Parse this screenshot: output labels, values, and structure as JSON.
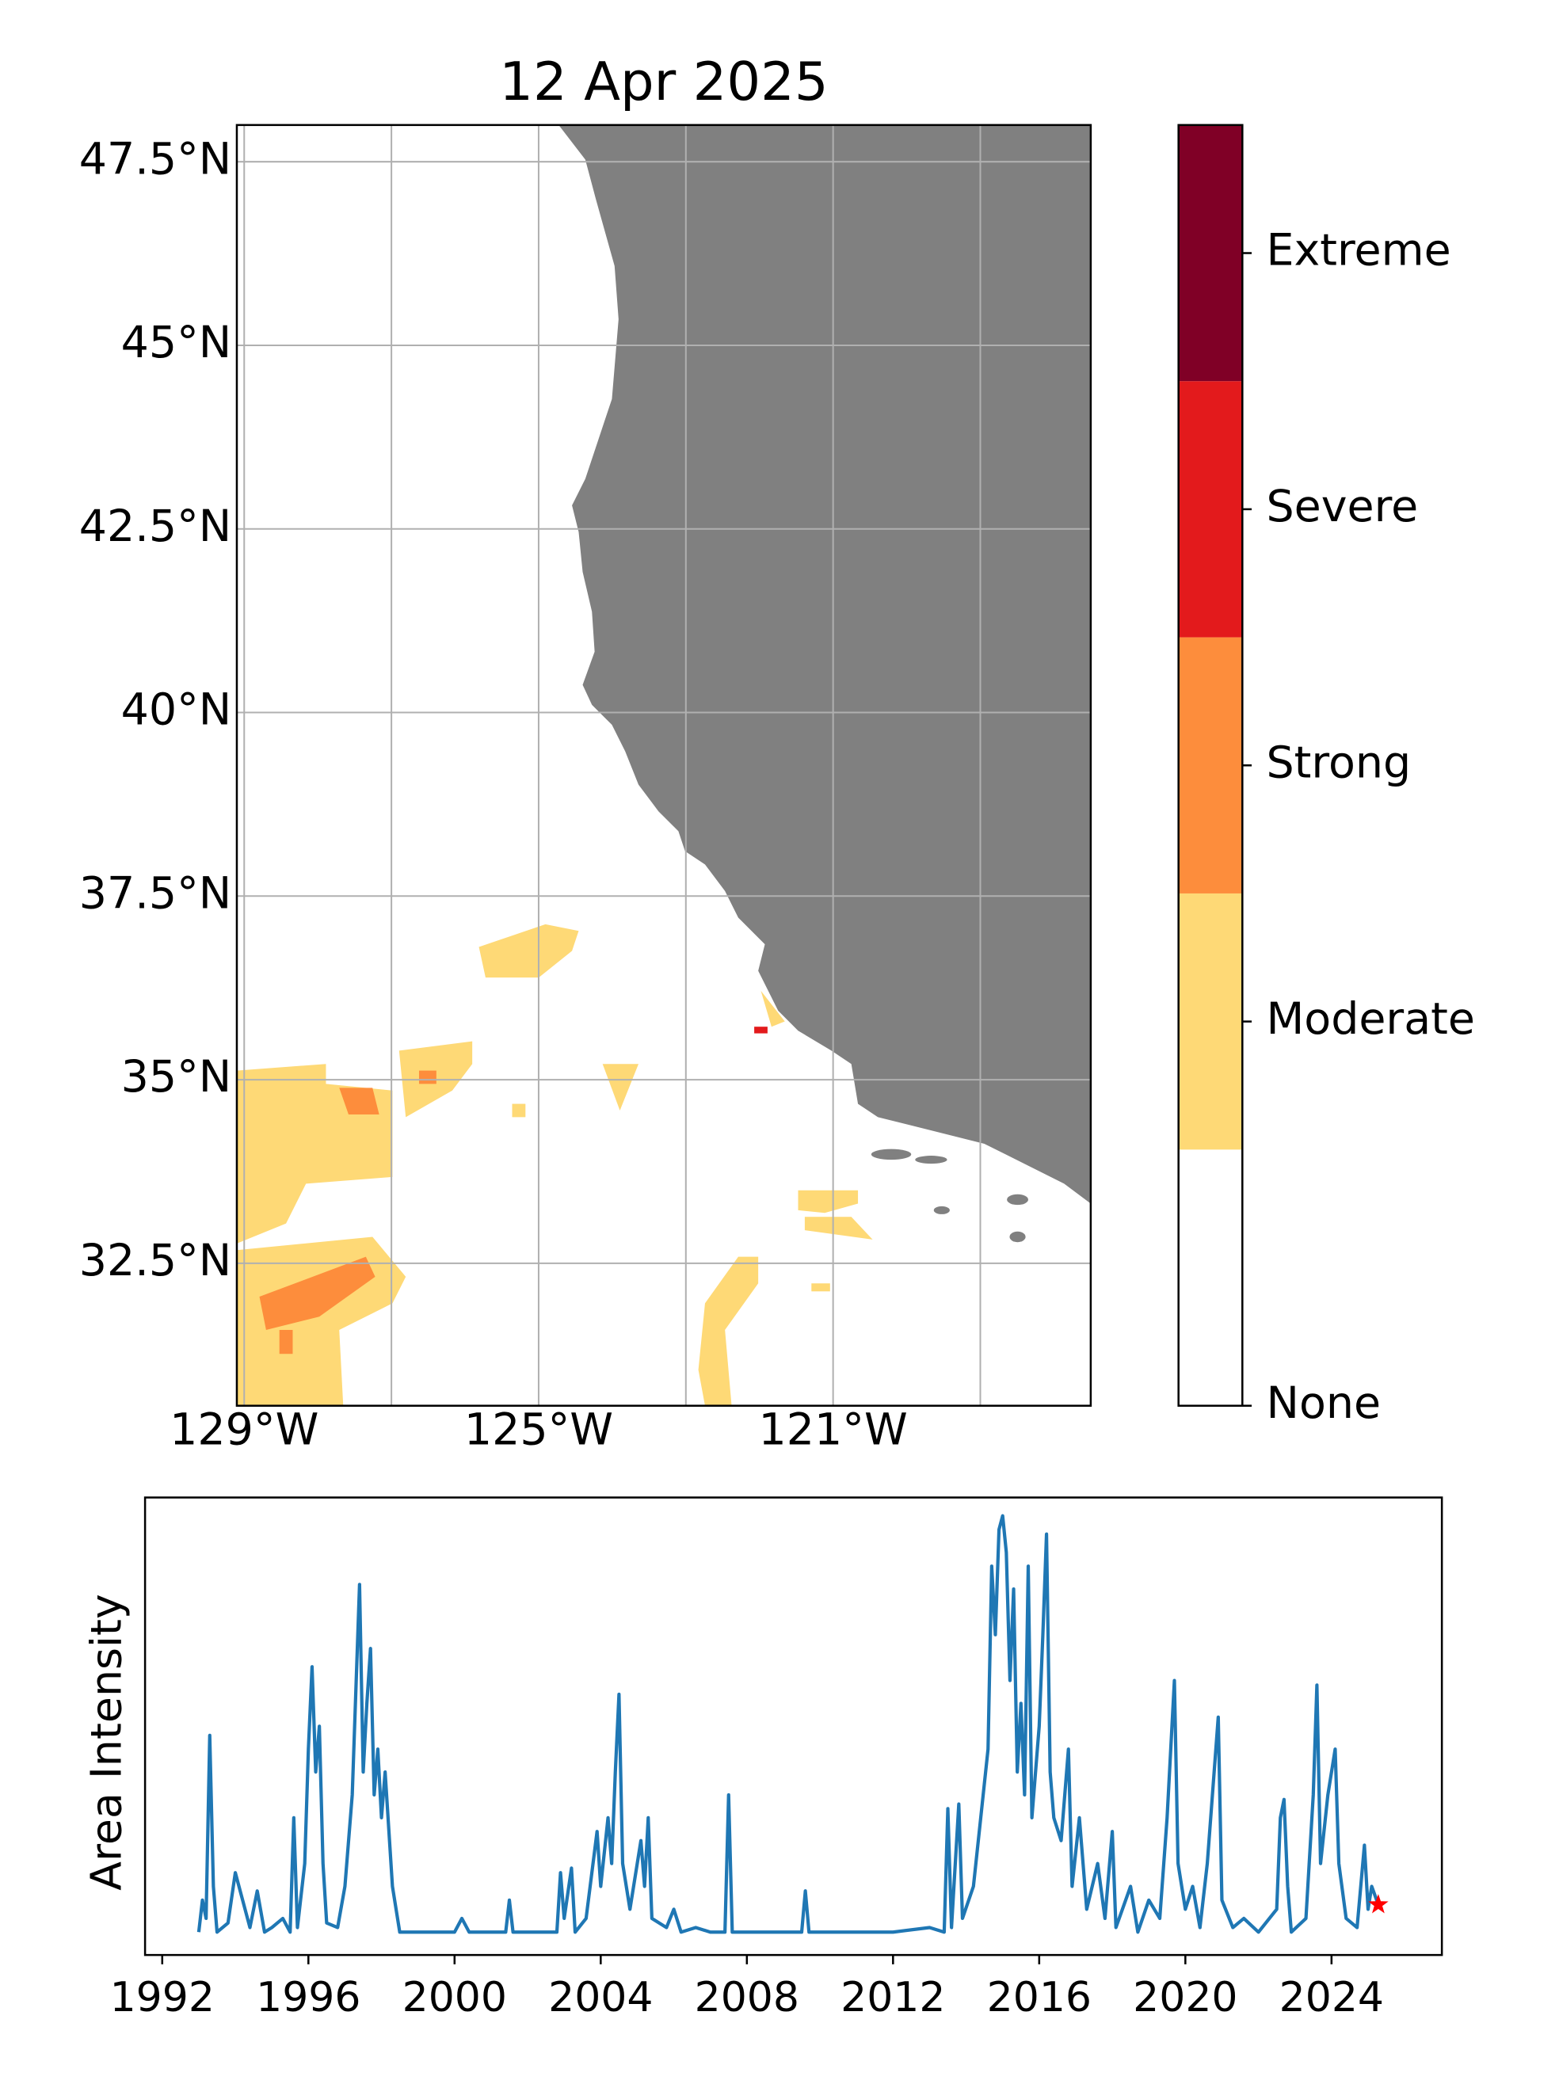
{
  "chart_data": [
    {
      "type": "map",
      "title": "12 Apr 2025",
      "xlim": [
        -129.1,
        -117.5
      ],
      "ylim": [
        30.56,
        48.0
      ],
      "xticks": [
        {
          "value": -129,
          "label": "129°W"
        },
        {
          "value": -125,
          "label": "125°W"
        },
        {
          "value": -121,
          "label": "121°W"
        }
      ],
      "xgrid": [
        -127,
        -123,
        -119
      ],
      "yticks": [
        {
          "value": 32.5,
          "label": "32.5°N"
        },
        {
          "value": 35,
          "label": "35°N"
        },
        {
          "value": 37.5,
          "label": "37.5°N"
        },
        {
          "value": 40,
          "label": "40°N"
        },
        {
          "value": 42.5,
          "label": "42.5°N"
        },
        {
          "value": 45,
          "label": "45°N"
        },
        {
          "value": 47.5,
          "label": "47.5°N"
        }
      ],
      "grid": true,
      "colorbar": {
        "bounds": [
          0,
          1,
          2,
          3,
          4,
          5
        ],
        "colors": [
          "#ffffff",
          "#fed976",
          "#fd8d3c",
          "#e31a1c",
          "#800026"
        ],
        "ticks": [
          {
            "value": 0,
            "label": "None"
          },
          {
            "value": 1.5,
            "label": "Moderate"
          },
          {
            "value": 2.5,
            "label": "Strong"
          },
          {
            "value": 3.5,
            "label": "Severe"
          },
          {
            "value": 4.5,
            "label": "Extreme"
          }
        ]
      }
    },
    {
      "type": "line",
      "ylabel": "Area Intensity",
      "color": "#1f77b4",
      "xlim": [
        1991.53,
        2027.02
      ],
      "ylim": [
        0,
        1
      ],
      "xticks": [
        1992,
        1996,
        2000,
        2004,
        2008,
        2012,
        2016,
        2020,
        2024
      ],
      "x": [
        1993.0,
        1993.1,
        1993.2,
        1993.3,
        1993.4,
        1993.5,
        1993.8,
        1994.0,
        1994.2,
        1994.4,
        1994.6,
        1994.8,
        1995.0,
        1995.3,
        1995.5,
        1995.6,
        1995.7,
        1995.9,
        1996.0,
        1996.1,
        1996.2,
        1996.3,
        1996.4,
        1996.5,
        1996.8,
        1997.0,
        1997.2,
        1997.4,
        1997.5,
        1997.6,
        1997.7,
        1997.8,
        1997.9,
        1998.0,
        1998.1,
        1998.3,
        1998.5,
        1999.0,
        2000.0,
        2000.2,
        2000.4,
        2001.4,
        2001.5,
        2001.6,
        2002.8,
        2002.9,
        2003.0,
        2003.2,
        2003.3,
        2003.6,
        2003.9,
        2004.0,
        2004.2,
        2004.3,
        2004.4,
        2004.5,
        2004.6,
        2004.8,
        2005.1,
        2005.2,
        2005.3,
        2005.4,
        2005.8,
        2006.0,
        2006.2,
        2006.6,
        2007.0,
        2007.4,
        2007.5,
        2007.6,
        2009.0,
        2009.5,
        2009.6,
        2009.7,
        2011.0,
        2012.0,
        2013.0,
        2013.4,
        2013.5,
        2013.6,
        2013.8,
        2013.9,
        2014.2,
        2014.4,
        2014.6,
        2014.7,
        2014.8,
        2014.9,
        2015.0,
        2015.1,
        2015.2,
        2015.3,
        2015.4,
        2015.5,
        2015.6,
        2015.7,
        2015.8,
        2016.0,
        2016.1,
        2016.2,
        2016.3,
        2016.4,
        2016.6,
        2016.8,
        2016.9,
        2017.1,
        2017.3,
        2017.6,
        2017.8,
        2018.0,
        2018.1,
        2018.5,
        2018.7,
        2019.0,
        2019.3,
        2019.5,
        2019.7,
        2019.8,
        2020.0,
        2020.2,
        2020.4,
        2020.6,
        2020.9,
        2021.0,
        2021.3,
        2021.6,
        2022.0,
        2022.5,
        2022.6,
        2022.7,
        2022.8,
        2022.9,
        2023.3,
        2023.5,
        2023.6,
        2023.7,
        2023.9,
        2024.1,
        2024.2,
        2024.4,
        2024.7,
        2024.9,
        2025.0,
        2025.1,
        2025.28
      ],
      "values": [
        0.05,
        0.12,
        0.08,
        0.48,
        0.15,
        0.05,
        0.07,
        0.18,
        0.12,
        0.06,
        0.14,
        0.05,
        0.06,
        0.08,
        0.05,
        0.3,
        0.06,
        0.2,
        0.45,
        0.63,
        0.4,
        0.5,
        0.2,
        0.07,
        0.06,
        0.15,
        0.35,
        0.81,
        0.4,
        0.55,
        0.67,
        0.35,
        0.45,
        0.3,
        0.4,
        0.15,
        0.05,
        0.05,
        0.05,
        0.08,
        0.05,
        0.05,
        0.12,
        0.05,
        0.05,
        0.18,
        0.08,
        0.19,
        0.05,
        0.08,
        0.27,
        0.15,
        0.3,
        0.2,
        0.4,
        0.57,
        0.2,
        0.1,
        0.25,
        0.15,
        0.3,
        0.08,
        0.06,
        0.1,
        0.05,
        0.06,
        0.05,
        0.05,
        0.35,
        0.05,
        0.05,
        0.05,
        0.14,
        0.05,
        0.05,
        0.05,
        0.06,
        0.05,
        0.32,
        0.06,
        0.33,
        0.08,
        0.15,
        0.3,
        0.45,
        0.85,
        0.7,
        0.93,
        0.96,
        0.88,
        0.6,
        0.8,
        0.4,
        0.55,
        0.35,
        0.85,
        0.3,
        0.5,
        0.7,
        0.92,
        0.4,
        0.3,
        0.25,
        0.45,
        0.15,
        0.3,
        0.1,
        0.2,
        0.08,
        0.27,
        0.06,
        0.15,
        0.05,
        0.12,
        0.08,
        0.3,
        0.6,
        0.2,
        0.1,
        0.15,
        0.06,
        0.2,
        0.52,
        0.12,
        0.06,
        0.08,
        0.05,
        0.1,
        0.3,
        0.34,
        0.15,
        0.05,
        0.08,
        0.35,
        0.59,
        0.2,
        0.35,
        0.45,
        0.2,
        0.08,
        0.06,
        0.24,
        0.1,
        0.15,
        0.11
      ],
      "marker": {
        "x": 2025.28,
        "value": 0.11,
        "color": "#ff0000"
      }
    }
  ]
}
